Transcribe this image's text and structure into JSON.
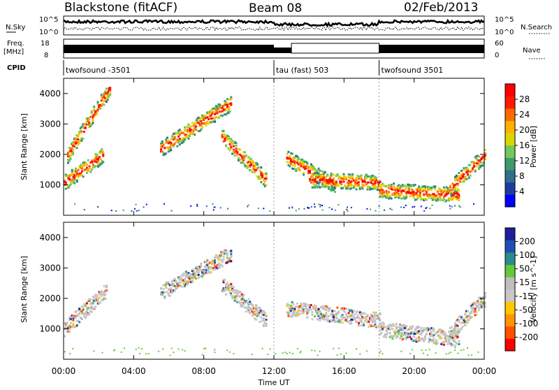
{
  "header": {
    "station": "Blackstone (fitACF)",
    "beam": "Beam 08",
    "date": "02/Feb/2013"
  },
  "strip_labels": {
    "nsky": "N.Sky",
    "nsearch": "N.Search",
    "freq": "Freq.",
    "freq_unit": "[MHz]",
    "cpid": "CPID",
    "nave": "Nave",
    "ten5": "10^5",
    "ten0": "10^0",
    "freq_hi": "18",
    "freq_lo": "8",
    "nave_hi": "60",
    "nave_lo": "0"
  },
  "cpid_segments": [
    {
      "label": "twofsound -3501",
      "start_hour": 0,
      "end_hour": 12
    },
    {
      "label": "tau (fast) 503",
      "start_hour": 12,
      "end_hour": 18
    },
    {
      "label": "twofsound 3501",
      "start_hour": 18,
      "end_hour": 24
    }
  ],
  "colors": {
    "power": [
      "#0000ff",
      "#1e3ca0",
      "#2f6e8c",
      "#3c9a6e",
      "#72c85a",
      "#d8d800",
      "#ffb000",
      "#ff6a00",
      "#ff1a00",
      "#ff0000"
    ],
    "velocity": [
      "#ff0000",
      "#ff5000",
      "#ff9600",
      "#ffc800",
      "#c8c8c8",
      "#bebebe",
      "#64c83c",
      "#2a8c8c",
      "#2050b4",
      "#1e1e96"
    ]
  },
  "chart_data": [
    {
      "type": "heatmap",
      "title": "",
      "xlabel": "",
      "ylabel": "Slant Range [km]",
      "xlim": [
        0,
        24
      ],
      "ylim": [
        0,
        4500
      ],
      "x_ticks": [
        "00:00",
        "04:00",
        "08:00",
        "12:00",
        "16:00",
        "20:00",
        "00:00"
      ],
      "y_ticks": [
        1000,
        2000,
        3000,
        4000
      ],
      "colorbar_label": "Power [dB]",
      "colorbar_ticks": [
        "4",
        "8",
        "12",
        "16",
        "20",
        "24",
        "28"
      ],
      "echo_bands": [
        {
          "start_hour": 0.0,
          "end_hour": 2.2,
          "range_start": 1100,
          "range_end": 2000
        },
        {
          "start_hour": 0.2,
          "end_hour": 2.6,
          "range_start": 2000,
          "range_end": 4200
        },
        {
          "start_hour": 5.5,
          "end_hour": 9.5,
          "range_start": 2200,
          "range_end": 3700
        },
        {
          "start_hour": 9.0,
          "end_hour": 11.5,
          "range_start": 2600,
          "range_end": 1200
        },
        {
          "start_hour": 12.7,
          "end_hour": 15.5,
          "range_start": 1900,
          "range_end": 1000
        },
        {
          "start_hour": 14.0,
          "end_hour": 18.0,
          "range_start": 1200,
          "range_end": 1100
        },
        {
          "start_hour": 18.0,
          "end_hour": 22.5,
          "range_start": 850,
          "range_end": 700
        },
        {
          "start_hour": 22.0,
          "end_hour": 24.0,
          "range_start": 900,
          "range_end": 2000
        }
      ]
    },
    {
      "type": "heatmap",
      "title": "",
      "xlabel": "Time UT",
      "ylabel": "Slant Range [km]",
      "xlim": [
        0,
        24
      ],
      "ylim": [
        0,
        4500
      ],
      "x_ticks": [
        "00:00",
        "04:00",
        "08:00",
        "12:00",
        "16:00",
        "20:00",
        "00:00"
      ],
      "y_ticks": [
        1000,
        2000,
        3000,
        4000
      ],
      "colorbar_label": "Velocity [m s^-1]",
      "colorbar_ticks": [
        "-200",
        "-100",
        "-50",
        "-15",
        "15",
        "50",
        "100",
        "200"
      ],
      "echo_bands": [
        {
          "start_hour": 0.0,
          "end_hour": 2.4,
          "range_start": 1000,
          "range_end": 2300
        },
        {
          "start_hour": 5.5,
          "end_hour": 9.5,
          "range_start": 2200,
          "range_end": 3500
        },
        {
          "start_hour": 9.0,
          "end_hour": 11.5,
          "range_start": 2500,
          "range_end": 1300
        },
        {
          "start_hour": 12.7,
          "end_hour": 18.0,
          "range_start": 1700,
          "range_end": 1300
        },
        {
          "start_hour": 18.0,
          "end_hour": 22.5,
          "range_start": 1000,
          "range_end": 700
        },
        {
          "start_hour": 22.0,
          "end_hour": 24.0,
          "range_start": 900,
          "range_end": 2000
        }
      ]
    }
  ]
}
